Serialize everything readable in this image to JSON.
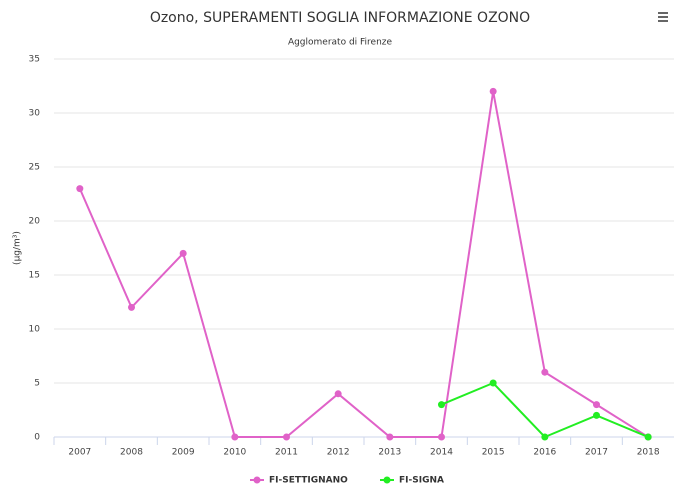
{
  "chart_data": {
    "type": "line",
    "title": "Ozono, SUPERAMENTI SOGLIA INFORMAZIONE OZONO",
    "subtitle": "Agglomerato di Firenze",
    "y_label": "(µg/m³)",
    "categories": [
      "2007",
      "2008",
      "2009",
      "2010",
      "2011",
      "2012",
      "2013",
      "2014",
      "2015",
      "2016",
      "2017",
      "2018"
    ],
    "series": [
      {
        "name": "FI-SETTIGNANO",
        "color": "#e062c8",
        "values": [
          23,
          12,
          17,
          0,
          0,
          4,
          0,
          0,
          32,
          6,
          3,
          0
        ]
      },
      {
        "name": "FI-SIGNA",
        "color": "#22ee22",
        "values": [
          null,
          null,
          null,
          null,
          null,
          null,
          null,
          3,
          5,
          0,
          2,
          0
        ]
      }
    ],
    "ylim": [
      0,
      35
    ],
    "yticks": [
      0,
      5,
      10,
      15,
      20,
      25,
      30,
      35
    ],
    "grid": true,
    "legend": "bottom"
  }
}
